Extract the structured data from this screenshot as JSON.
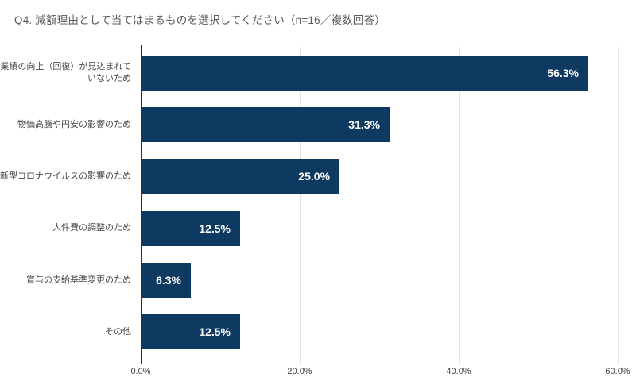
{
  "chart_data": {
    "type": "bar",
    "orientation": "horizontal",
    "title": "Q4. 減額理由として当てはまるものを選択してください（n=16／複数回答）",
    "sample_note": "n=16／複数回答",
    "categories": [
      "業績の向上（回復）が見込まれていないため",
      "物価高騰や円安の影響のため",
      "新型コロナウイルスの影響のため",
      "人件費の調整のため",
      "賞与の支給基準変更のため",
      "その他"
    ],
    "values": [
      56.3,
      31.3,
      25.0,
      12.5,
      6.3,
      12.5
    ],
    "value_labels": [
      "56.3%",
      "31.3%",
      "25.0%",
      "12.5%",
      "6.3%",
      "12.5%"
    ],
    "xlabel": "",
    "ylabel": "",
    "xlim": [
      0,
      60
    ],
    "x_ticks": [
      0,
      20,
      40,
      60
    ],
    "x_tick_labels": [
      "0.0%",
      "20.0%",
      "40.0%",
      "60.0%"
    ],
    "grid": "vertical-only",
    "legend": "none",
    "bar_color": "#0e3a62",
    "value_label_color": "#ffffff",
    "title_color": "#595959"
  }
}
